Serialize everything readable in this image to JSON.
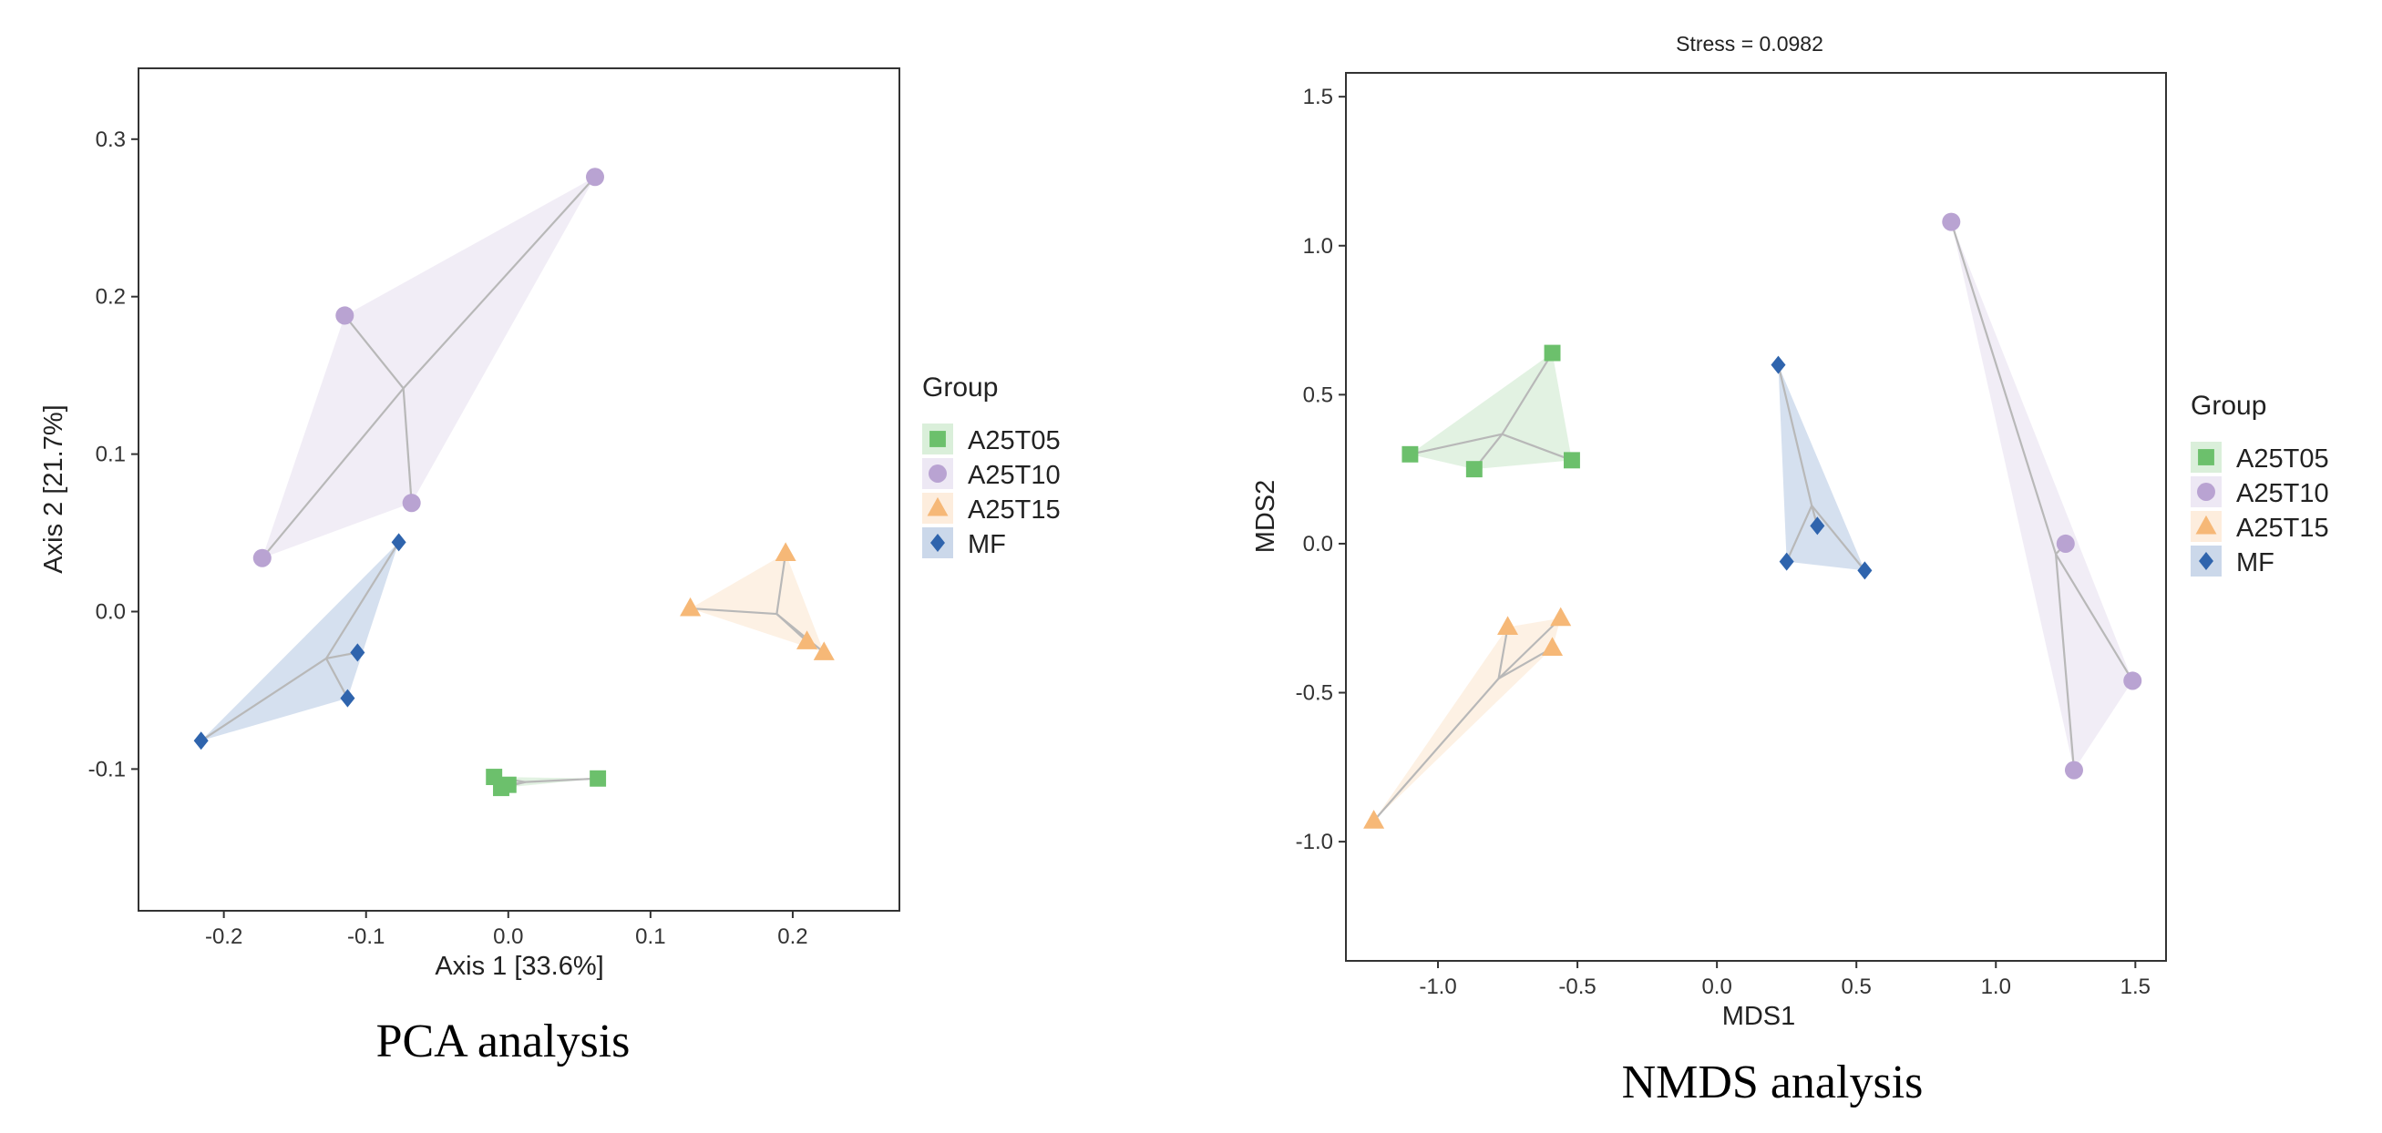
{
  "colors": {
    "A25T05": "#6cc06c",
    "A25T10": "#b9a3d2",
    "A25T15": "#f6b877",
    "MF": "#2f64ad"
  },
  "chart_data": [
    {
      "type": "scatter",
      "id": "pca",
      "caption": "PCA analysis",
      "title": "",
      "xlabel": "Axis 1 [33.6%]",
      "ylabel": "Axis 2 [21.7%]",
      "xlim": [
        -0.26,
        0.275
      ],
      "ylim": [
        -0.19,
        0.345
      ],
      "xticks": [
        -0.2,
        -0.1,
        0.0,
        0.1,
        0.2
      ],
      "xtick_labels": [
        "-0.2",
        "-0.1",
        "0.0",
        "0.1",
        "0.2"
      ],
      "yticks": [
        -0.1,
        0.0,
        0.1,
        0.2,
        0.3
      ],
      "ytick_labels": [
        "-0.1",
        "0.0",
        "0.1",
        "0.2",
        "0.3"
      ],
      "legend_title": "Group",
      "series": [
        {
          "name": "A25T05",
          "marker": "square",
          "points": [
            [
              -0.01,
              -0.105
            ],
            [
              -0.005,
              -0.112
            ],
            [
              0.0,
              -0.11
            ],
            [
              0.063,
              -0.106
            ]
          ]
        },
        {
          "name": "A25T10",
          "marker": "circle",
          "points": [
            [
              0.061,
              0.276
            ],
            [
              -0.115,
              0.188
            ],
            [
              -0.068,
              0.069
            ],
            [
              -0.173,
              0.034
            ]
          ]
        },
        {
          "name": "A25T15",
          "marker": "triangle",
          "points": [
            [
              0.128,
              0.002
            ],
            [
              0.195,
              0.037
            ],
            [
              0.21,
              -0.019
            ],
            [
              0.222,
              -0.026
            ]
          ]
        },
        {
          "name": "MF",
          "marker": "diamond",
          "points": [
            [
              -0.077,
              0.044
            ],
            [
              -0.106,
              -0.026
            ],
            [
              -0.113,
              -0.055
            ],
            [
              -0.216,
              -0.082
            ]
          ]
        }
      ]
    },
    {
      "type": "scatter",
      "id": "nmds",
      "caption": "NMDS analysis",
      "title": "Stress = 0.0982",
      "xlabel": "MDS1",
      "ylabel": "MDS2",
      "xlim": [
        -1.33,
        1.61
      ],
      "ylim": [
        -1.4,
        1.58
      ],
      "xticks": [
        -1.0,
        -0.5,
        0.0,
        0.5,
        1.0,
        1.5
      ],
      "xtick_labels": [
        "-1.0",
        "-0.5",
        "0.0",
        "0.5",
        "1.0",
        "1.5"
      ],
      "yticks": [
        -1.0,
        -0.5,
        0.0,
        0.5,
        1.0,
        1.5
      ],
      "ytick_labels": [
        "-1.0",
        "-0.5",
        "0.0",
        "0.5",
        "1.0",
        "1.5"
      ],
      "legend_title": "Group",
      "series": [
        {
          "name": "A25T05",
          "marker": "square",
          "points": [
            [
              -1.1,
              0.3
            ],
            [
              -0.59,
              0.64
            ],
            [
              -0.87,
              0.25
            ],
            [
              -0.52,
              0.28
            ]
          ]
        },
        {
          "name": "A25T10",
          "marker": "circle",
          "points": [
            [
              0.84,
              1.08
            ],
            [
              1.25,
              0.0
            ],
            [
              1.49,
              -0.46
            ],
            [
              1.28,
              -0.76
            ]
          ]
        },
        {
          "name": "A25T15",
          "marker": "triangle",
          "points": [
            [
              -0.75,
              -0.28
            ],
            [
              -0.56,
              -0.25
            ],
            [
              -0.59,
              -0.35
            ],
            [
              -1.23,
              -0.93
            ]
          ]
        },
        {
          "name": "MF",
          "marker": "diamond",
          "points": [
            [
              0.22,
              0.6
            ],
            [
              0.25,
              -0.06
            ],
            [
              0.36,
              0.06
            ],
            [
              0.53,
              -0.09
            ]
          ]
        }
      ]
    }
  ]
}
